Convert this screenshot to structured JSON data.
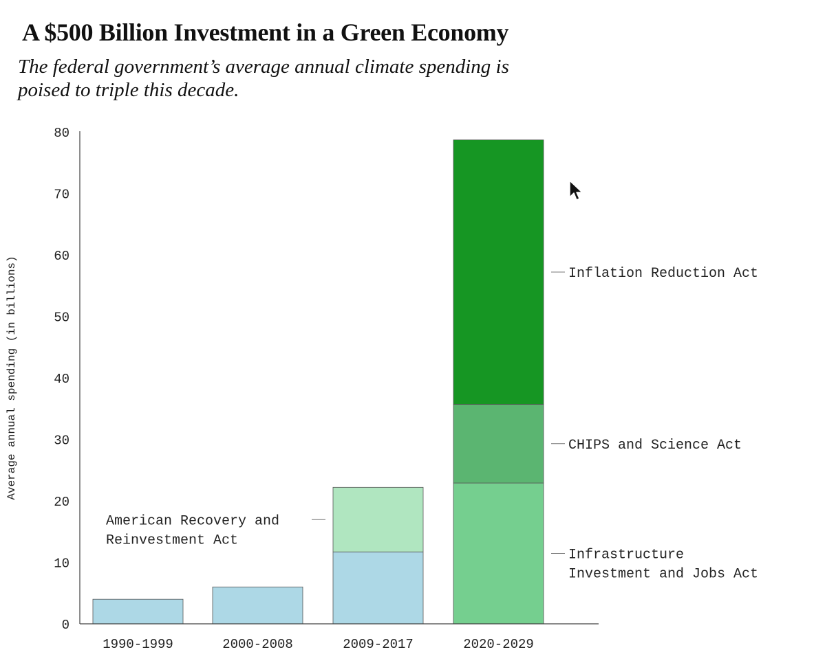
{
  "title": "A $500 Billion Investment in a Green Economy",
  "subtitle": "The federal government’s average annual climate spending is poised to triple this decade.",
  "chart_data": {
    "type": "bar",
    "stacked": true,
    "title": "A $500 Billion Investment in a Green Economy",
    "subtitle": "The federal government’s average annual climate spending is poised to triple this decade.",
    "xlabel": "",
    "ylabel": "Average annual spending (in billions)",
    "ylim": [
      0,
      80
    ],
    "yticks": [
      0,
      10,
      20,
      30,
      40,
      50,
      60,
      70,
      80
    ],
    "grid": false,
    "legend": "direct labels",
    "categories": [
      "1990-1999",
      "2000-2008",
      "2009-2017",
      "2020-2029"
    ],
    "series": [
      {
        "values": [
          4,
          6,
          11.7,
          0
        ],
        "color": "#add8e6"
      },
      {
        "name": "American Recovery and Reinvestment Act",
        "values": [
          0,
          0,
          10.5,
          0
        ],
        "color": "#b0e6c0"
      },
      {
        "name": "Infrastructure Investment and Jobs Act",
        "values": [
          0,
          0,
          0,
          22.9
        ],
        "color": "#75cf8f"
      },
      {
        "name": "CHIPS and Science Act",
        "values": [
          0,
          0,
          0,
          12.8
        ],
        "color": "#5bb571"
      },
      {
        "name": "Inflation Reduction Act",
        "values": [
          0,
          0,
          0,
          43
        ],
        "color": "#169623"
      }
    ],
    "annotations": [
      {
        "lines": [
          "American Recovery and",
          "Reinvestment Act"
        ],
        "series": "American Recovery and Reinvestment Act",
        "side": "left"
      },
      {
        "lines": [
          "Infrastructure",
          "Investment and Jobs Act"
        ],
        "series": "Infrastructure Investment and Jobs Act",
        "side": "right"
      },
      {
        "lines": [
          "CHIPS and Science Act"
        ],
        "series": "CHIPS and Science Act",
        "side": "right"
      },
      {
        "lines": [
          "Inflation Reduction Act"
        ],
        "series": "Inflation Reduction Act",
        "side": "right"
      }
    ]
  }
}
